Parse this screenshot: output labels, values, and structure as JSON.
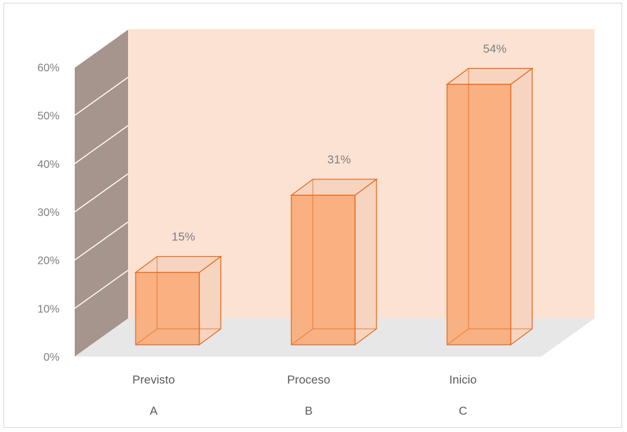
{
  "chart_data": {
    "type": "bar",
    "categories": [
      "Previsto",
      "Proceso",
      "Inicio"
    ],
    "category_letters": [
      "A",
      "B",
      "C"
    ],
    "values": [
      15,
      31,
      54
    ],
    "value_labels": [
      "15%",
      "31%",
      "54%"
    ],
    "ylim": [
      0,
      60
    ],
    "yticks": [
      "0%",
      "10%",
      "20%",
      "30%",
      "40%",
      "50%",
      "60%"
    ],
    "grid": true,
    "colors": {
      "bar_front": "#f9ab77",
      "bar_side": "#f7d4c0",
      "bar_outline": "#e46c1f",
      "back_wall": "#fbe2d3",
      "side_wall": "#a5958c",
      "floor": "#e7e7e7",
      "gridline": "#ffffff"
    }
  }
}
